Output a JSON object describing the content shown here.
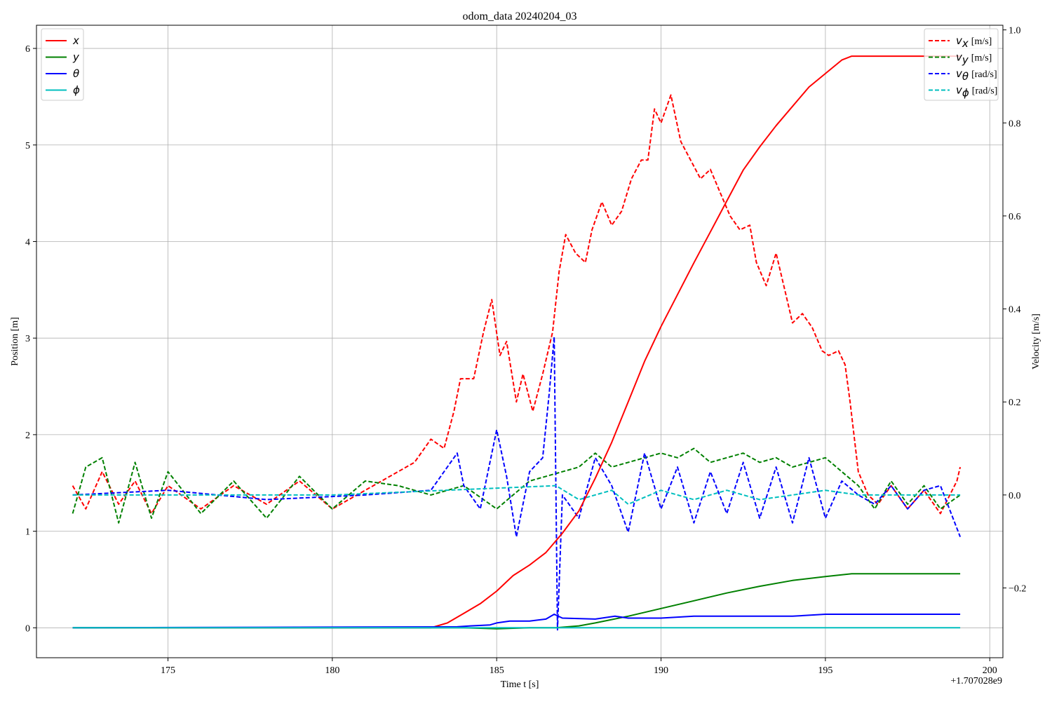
{
  "chart_data": {
    "type": "line",
    "title": "odom_data 20240204_03",
    "xlabel": "Time t [s]",
    "ylabel_left": "Position [m]",
    "ylabel_right": "Velocity [m/s]",
    "x_offset_text": "+1.707028e9",
    "xlim": [
      171.0,
      200.4
    ],
    "ylim_left": [
      -0.31,
      6.24
    ],
    "ylim_right": [
      -0.35,
      1.01
    ],
    "x_ticks": [
      175,
      180,
      185,
      190,
      195,
      200
    ],
    "x_tick_labels": [
      "175",
      "180",
      "185",
      "190",
      "195",
      "200"
    ],
    "y_left_ticks": [
      0,
      1,
      2,
      3,
      4,
      5,
      6
    ],
    "y_left_tick_labels": [
      "0",
      "1",
      "2",
      "3",
      "4",
      "5",
      "6"
    ],
    "y_right_ticks": [
      -0.2,
      0.0,
      0.2,
      0.4,
      0.6,
      0.8,
      1.0
    ],
    "y_right_tick_labels": [
      "−0.2",
      "0.0",
      "0.2",
      "0.4",
      "0.6",
      "0.8",
      "1.0"
    ],
    "grid": true,
    "legend_left": {
      "placement": "top-left",
      "entries": [
        {
          "symbol": "x",
          "label": "",
          "color": "#ff0000",
          "dashed": false
        },
        {
          "symbol": "y",
          "label": "",
          "color": "#008000",
          "dashed": false
        },
        {
          "symbol": "θ",
          "label": "",
          "color": "#0000ff",
          "dashed": false
        },
        {
          "symbol": "ϕ",
          "label": "",
          "color": "#00bfbf",
          "dashed": false
        }
      ]
    },
    "legend_right": {
      "placement": "top-right",
      "entries": [
        {
          "symbol": "v",
          "sub": "x",
          "label": "[m/s]",
          "color": "#ff0000",
          "dashed": true
        },
        {
          "symbol": "v",
          "sub": "y",
          "label": "[m/s]",
          "color": "#008000",
          "dashed": true
        },
        {
          "symbol": "v",
          "sub": "θ",
          "label": "[rad/s]",
          "color": "#0000ff",
          "dashed": true
        },
        {
          "symbol": "v",
          "sub": "ϕ",
          "label": "[rad/s]",
          "color": "#00bfbf",
          "dashed": true
        }
      ]
    },
    "series": [
      {
        "name": "x",
        "axis": "left",
        "color": "#ff0000",
        "dashed": false,
        "x": [
          172.1,
          183.0,
          183.5,
          184.0,
          184.5,
          185.0,
          185.5,
          186.0,
          186.5,
          187.0,
          187.5,
          188.0,
          188.5,
          189.0,
          189.5,
          190.0,
          190.5,
          191.0,
          191.5,
          192.0,
          192.5,
          193.0,
          193.5,
          194.0,
          194.5,
          195.0,
          195.5,
          195.8,
          196.5,
          197.0,
          198.0,
          199.1
        ],
        "y": [
          0.0,
          0.0,
          0.05,
          0.15,
          0.25,
          0.38,
          0.54,
          0.65,
          0.78,
          0.98,
          1.21,
          1.55,
          1.92,
          2.34,
          2.76,
          3.12,
          3.45,
          3.78,
          4.1,
          4.42,
          4.74,
          4.98,
          5.2,
          5.4,
          5.6,
          5.74,
          5.88,
          5.92,
          5.92,
          5.92,
          5.92,
          5.92
        ]
      },
      {
        "name": "y",
        "axis": "left",
        "color": "#008000",
        "dashed": false,
        "x": [
          172.1,
          184.0,
          185.0,
          186.0,
          186.8,
          187.5,
          188.0,
          189.0,
          190.0,
          191.0,
          192.0,
          193.0,
          194.0,
          195.0,
          195.8,
          197.0,
          199.1
        ],
        "y": [
          0.0,
          0.0,
          -0.01,
          0.0,
          0.0,
          0.02,
          0.05,
          0.12,
          0.2,
          0.28,
          0.36,
          0.43,
          0.49,
          0.53,
          0.56,
          0.56,
          0.56
        ]
      },
      {
        "name": "θ",
        "axis": "left",
        "color": "#0000ff",
        "dashed": false,
        "x": [
          172.1,
          183.8,
          184.2,
          184.8,
          185.0,
          185.4,
          186.0,
          186.5,
          186.75,
          187.0,
          188.0,
          188.6,
          189.0,
          190.0,
          191.0,
          192.0,
          193.0,
          194.0,
          195.0,
          196.0,
          199.1
        ],
        "y": [
          0.0,
          0.01,
          0.02,
          0.03,
          0.05,
          0.07,
          0.07,
          0.09,
          0.14,
          0.1,
          0.09,
          0.12,
          0.1,
          0.1,
          0.12,
          0.12,
          0.12,
          0.12,
          0.14,
          0.14,
          0.14
        ]
      },
      {
        "name": "ϕ",
        "axis": "left",
        "color": "#00bfbf",
        "dashed": false,
        "x": [
          172.1,
          199.1
        ],
        "y": [
          0.0,
          0.0
        ]
      },
      {
        "name": "v_x",
        "axis": "right",
        "color": "#ff0000",
        "dashed": true,
        "x": [
          172.1,
          172.5,
          173.0,
          173.5,
          174.0,
          174.5,
          175.0,
          176.0,
          177.0,
          178.0,
          179.0,
          180.0,
          181.0,
          182.0,
          182.5,
          183.0,
          183.4,
          183.7,
          183.9,
          184.3,
          184.6,
          184.85,
          185.1,
          185.3,
          185.6,
          185.8,
          186.1,
          186.4,
          186.7,
          186.9,
          187.1,
          187.4,
          187.7,
          187.9,
          188.2,
          188.5,
          188.8,
          189.1,
          189.4,
          189.6,
          189.8,
          190.0,
          190.3,
          190.6,
          190.9,
          191.2,
          191.5,
          191.8,
          192.1,
          192.4,
          192.7,
          192.9,
          193.2,
          193.5,
          193.8,
          194.0,
          194.3,
          194.6,
          194.9,
          195.1,
          195.4,
          195.6,
          195.75,
          196.0,
          196.3,
          196.6,
          197.0,
          197.5,
          198.0,
          198.5,
          199.0,
          199.1
        ],
        "y": [
          0.02,
          -0.03,
          0.05,
          -0.02,
          0.03,
          -0.04,
          0.02,
          -0.03,
          0.02,
          -0.02,
          0.03,
          -0.03,
          0.01,
          0.05,
          0.07,
          0.12,
          0.1,
          0.18,
          0.25,
          0.25,
          0.35,
          0.42,
          0.3,
          0.33,
          0.2,
          0.26,
          0.18,
          0.26,
          0.35,
          0.48,
          0.56,
          0.52,
          0.5,
          0.57,
          0.63,
          0.58,
          0.61,
          0.68,
          0.72,
          0.72,
          0.83,
          0.8,
          0.86,
          0.76,
          0.72,
          0.68,
          0.7,
          0.65,
          0.6,
          0.57,
          0.58,
          0.5,
          0.45,
          0.52,
          0.43,
          0.37,
          0.39,
          0.36,
          0.31,
          0.3,
          0.31,
          0.28,
          0.2,
          0.05,
          0.0,
          -0.02,
          0.02,
          -0.03,
          0.01,
          -0.04,
          0.03,
          0.06
        ]
      },
      {
        "name": "v_y",
        "axis": "right",
        "color": "#008000",
        "dashed": true,
        "x": [
          172.1,
          172.5,
          173.0,
          173.5,
          174.0,
          174.5,
          175.0,
          176.0,
          177.0,
          178.0,
          179.0,
          180.0,
          181.0,
          182.0,
          183.0,
          184.0,
          185.0,
          186.0,
          187.0,
          187.5,
          188.0,
          188.5,
          189.0,
          189.5,
          190.0,
          190.5,
          191.0,
          191.5,
          192.0,
          192.5,
          193.0,
          193.5,
          194.0,
          194.5,
          195.0,
          195.5,
          196.0,
          196.5,
          197.0,
          197.5,
          198.0,
          198.5,
          199.1
        ],
        "y": [
          -0.04,
          0.06,
          0.08,
          -0.06,
          0.07,
          -0.05,
          0.05,
          -0.04,
          0.03,
          -0.05,
          0.04,
          -0.03,
          0.03,
          0.02,
          0.0,
          0.02,
          -0.03,
          0.03,
          0.05,
          0.06,
          0.09,
          0.06,
          0.07,
          0.08,
          0.09,
          0.08,
          0.1,
          0.07,
          0.08,
          0.09,
          0.07,
          0.08,
          0.06,
          0.07,
          0.08,
          0.05,
          0.02,
          -0.03,
          0.03,
          -0.02,
          0.02,
          -0.03,
          0.0
        ]
      },
      {
        "name": "v_θ",
        "axis": "right",
        "color": "#0000ff",
        "dashed": true,
        "x": [
          172.1,
          175.0,
          178.0,
          181.0,
          183.0,
          183.8,
          184.0,
          184.5,
          185.0,
          185.3,
          185.6,
          186.0,
          186.4,
          186.6,
          186.75,
          186.85,
          187.0,
          187.5,
          188.0,
          188.5,
          189.0,
          189.5,
          190.0,
          190.5,
          191.0,
          191.5,
          192.0,
          192.5,
          193.0,
          193.5,
          194.0,
          194.5,
          195.0,
          195.5,
          196.0,
          196.5,
          197.0,
          197.5,
          198.0,
          198.5,
          199.1
        ],
        "y": [
          0.0,
          0.01,
          -0.01,
          0.0,
          0.01,
          0.09,
          0.02,
          -0.03,
          0.14,
          0.04,
          -0.09,
          0.05,
          0.08,
          0.22,
          0.34,
          -0.29,
          0.0,
          -0.05,
          0.08,
          0.02,
          -0.08,
          0.09,
          -0.03,
          0.06,
          -0.06,
          0.05,
          -0.04,
          0.07,
          -0.05,
          0.06,
          -0.06,
          0.08,
          -0.05,
          0.03,
          0.0,
          -0.02,
          0.02,
          -0.03,
          0.01,
          0.02,
          -0.09
        ]
      },
      {
        "name": "v_ϕ",
        "axis": "right",
        "color": "#00bfbf",
        "dashed": true,
        "x": [
          172.1,
          180.0,
          186.8,
          187.5,
          188.5,
          189.0,
          190.0,
          191.0,
          192.0,
          193.0,
          194.0,
          195.0,
          196.0,
          199.1
        ],
        "y": [
          0.0,
          0.0,
          0.02,
          -0.01,
          0.01,
          -0.02,
          0.01,
          -0.01,
          0.01,
          -0.01,
          0.0,
          0.01,
          0.0,
          0.0
        ]
      }
    ]
  }
}
